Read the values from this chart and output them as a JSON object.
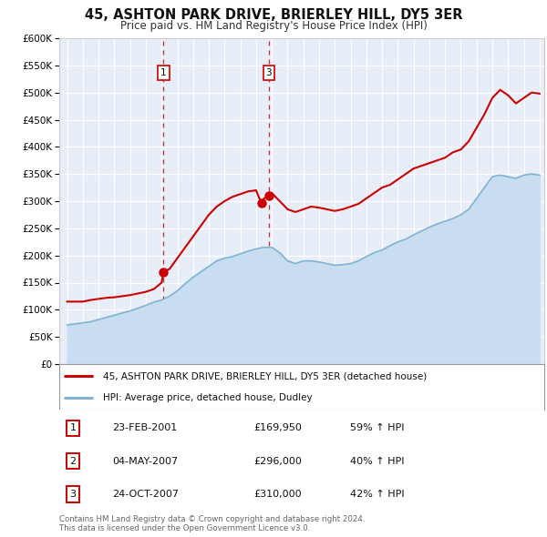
{
  "title": "45, ASHTON PARK DRIVE, BRIERLEY HILL, DY5 3ER",
  "subtitle": "Price paid vs. HM Land Registry's House Price Index (HPI)",
  "legend_line1": "45, ASHTON PARK DRIVE, BRIERLEY HILL, DY5 3ER (detached house)",
  "legend_line2": "HPI: Average price, detached house, Dudley",
  "footer1": "Contains HM Land Registry data © Crown copyright and database right 2024.",
  "footer2": "This data is licensed under the Open Government Licence v3.0.",
  "transactions": [
    {
      "num": 1,
      "date": "23-FEB-2001",
      "price": "£169,950",
      "hpi": "59% ↑ HPI",
      "year": 2001.12,
      "has_vline": true
    },
    {
      "num": 2,
      "date": "04-MAY-2007",
      "price": "£296,000",
      "hpi": "40% ↑ HPI",
      "year": 2007.34,
      "has_vline": false
    },
    {
      "num": 3,
      "date": "24-OCT-2007",
      "price": "£310,000",
      "hpi": "42% ↑ HPI",
      "year": 2007.81,
      "has_vline": true
    }
  ],
  "house_color": "#cc0000",
  "hpi_color": "#7fb3d3",
  "hpi_fill_color": "#c8ddf0",
  "background_color": "#e8eef8",
  "grid_color": "#ffffff",
  "ylim": [
    0,
    600000
  ],
  "yticks": [
    0,
    50000,
    100000,
    150000,
    200000,
    250000,
    300000,
    350000,
    400000,
    450000,
    500000,
    550000,
    600000
  ],
  "xlim_start": 1994.5,
  "xlim_end": 2025.3,
  "house_data_years": [
    1995.0,
    1995.5,
    1996.0,
    1996.5,
    1997.0,
    1997.5,
    1998.0,
    1998.5,
    1999.0,
    1999.5,
    2000.0,
    2000.5,
    2001.0,
    2001.12,
    2001.5,
    2002.0,
    2002.5,
    2003.0,
    2003.5,
    2004.0,
    2004.5,
    2005.0,
    2005.5,
    2006.0,
    2006.5,
    2007.0,
    2007.34,
    2007.5,
    2007.81,
    2008.0,
    2008.5,
    2009.0,
    2009.5,
    2010.0,
    2010.5,
    2011.0,
    2011.5,
    2012.0,
    2012.5,
    2013.0,
    2013.5,
    2014.0,
    2014.5,
    2015.0,
    2015.5,
    2016.0,
    2016.5,
    2017.0,
    2017.5,
    2018.0,
    2018.5,
    2019.0,
    2019.5,
    2020.0,
    2020.5,
    2021.0,
    2021.5,
    2022.0,
    2022.5,
    2023.0,
    2023.5,
    2024.0,
    2024.5,
    2025.0
  ],
  "house_data_values": [
    115000,
    115000,
    115000,
    118000,
    120000,
    122000,
    123000,
    125000,
    127000,
    130000,
    133000,
    138000,
    150000,
    169950,
    175000,
    195000,
    215000,
    235000,
    255000,
    275000,
    290000,
    300000,
    308000,
    313000,
    318000,
    320000,
    296000,
    305000,
    310000,
    315000,
    300000,
    285000,
    280000,
    285000,
    290000,
    288000,
    285000,
    282000,
    285000,
    290000,
    295000,
    305000,
    315000,
    325000,
    330000,
    340000,
    350000,
    360000,
    365000,
    370000,
    375000,
    380000,
    390000,
    395000,
    410000,
    435000,
    460000,
    490000,
    505000,
    495000,
    480000,
    490000,
    500000,
    498000
  ],
  "hpi_data_years": [
    1995.0,
    1995.5,
    1996.0,
    1996.5,
    1997.0,
    1997.5,
    1998.0,
    1998.5,
    1999.0,
    1999.5,
    2000.0,
    2000.5,
    2001.0,
    2001.5,
    2002.0,
    2002.5,
    2003.0,
    2003.5,
    2004.0,
    2004.5,
    2005.0,
    2005.5,
    2006.0,
    2006.5,
    2007.0,
    2007.5,
    2008.0,
    2008.5,
    2009.0,
    2009.5,
    2010.0,
    2010.5,
    2011.0,
    2011.5,
    2012.0,
    2012.5,
    2013.0,
    2013.5,
    2014.0,
    2014.5,
    2015.0,
    2015.5,
    2016.0,
    2016.5,
    2017.0,
    2017.5,
    2018.0,
    2018.5,
    2019.0,
    2019.5,
    2020.0,
    2020.5,
    2021.0,
    2021.5,
    2022.0,
    2022.5,
    2023.0,
    2023.5,
    2024.0,
    2024.5,
    2025.0
  ],
  "hpi_data_values": [
    72000,
    74000,
    76000,
    78000,
    82000,
    86000,
    90000,
    94000,
    98000,
    103000,
    108000,
    114000,
    118000,
    125000,
    135000,
    148000,
    160000,
    170000,
    180000,
    190000,
    195000,
    198000,
    203000,
    208000,
    212000,
    215000,
    215000,
    205000,
    190000,
    185000,
    190000,
    190000,
    188000,
    185000,
    182000,
    183000,
    185000,
    190000,
    198000,
    205000,
    210000,
    218000,
    225000,
    230000,
    238000,
    245000,
    252000,
    258000,
    263000,
    268000,
    275000,
    285000,
    305000,
    325000,
    345000,
    348000,
    345000,
    342000,
    348000,
    350000,
    348000
  ]
}
